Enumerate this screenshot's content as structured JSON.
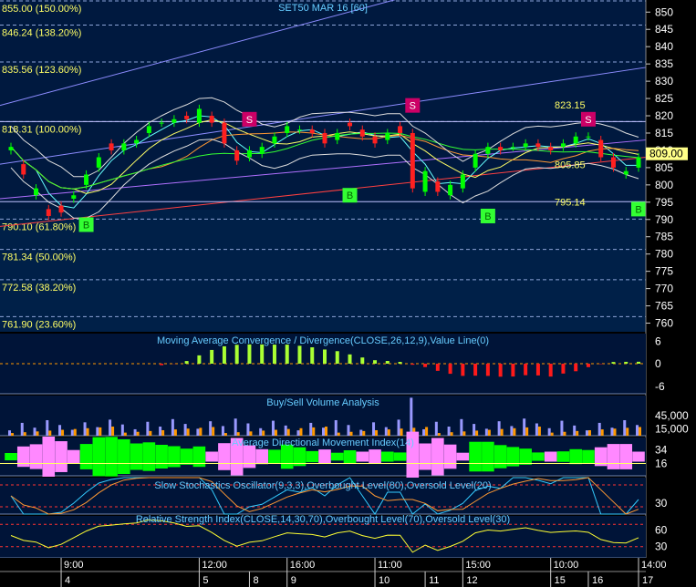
{
  "header": {
    "title": "SET50 MAR 16  [60]"
  },
  "price_panel": {
    "y_ticks": [
      850,
      845,
      840,
      835,
      830,
      825,
      820,
      815,
      810,
      805,
      800,
      795,
      790,
      785,
      780,
      775,
      770,
      765,
      760
    ],
    "ylim": [
      757.5,
      853.5
    ],
    "fib_levels": [
      {
        "value": 855.0,
        "label": "855.00 (150.00%)"
      },
      {
        "value": 846.24,
        "label": "846.24 (138.20%)"
      },
      {
        "value": 835.56,
        "label": "835.56 (123.60%)"
      },
      {
        "value": 818.31,
        "label": "818.31 (100.00%)"
      },
      {
        "value": 790.1,
        "label": "790.10 (61.80%)"
      },
      {
        "value": 781.34,
        "label": "781.34 (50.00%)"
      },
      {
        "value": 772.58,
        "label": "772.58 (38.20%)"
      },
      {
        "value": 761.9,
        "label": "761.90 (23.60%)"
      }
    ],
    "price_labels": [
      {
        "value": 823.15,
        "text": "823.15"
      },
      {
        "value": 805.85,
        "text": "805.85"
      },
      {
        "value": 795.14,
        "text": "795.14"
      }
    ],
    "last_price": "809.00",
    "signals": [
      {
        "type": "B",
        "bar": 6,
        "value": 788.5
      },
      {
        "type": "S",
        "bar": 19,
        "value": 819.0
      },
      {
        "type": "B",
        "bar": 27,
        "value": 797.0
      },
      {
        "type": "S",
        "bar": 32,
        "value": 823.0
      },
      {
        "type": "B",
        "bar": 38,
        "value": 791.0
      },
      {
        "type": "S",
        "bar": 46,
        "value": 819.0
      },
      {
        "type": "B",
        "bar": 50,
        "value": 793.0
      }
    ],
    "candles": [
      [
        810,
        811
      ],
      [
        806,
        803
      ],
      [
        797,
        799
      ],
      [
        793,
        791
      ],
      [
        794,
        792
      ],
      [
        796,
        797
      ],
      [
        800,
        803
      ],
      [
        805,
        808
      ],
      [
        812,
        810
      ],
      [
        810,
        812
      ],
      [
        812,
        813
      ],
      [
        815,
        817
      ],
      [
        818,
        818
      ],
      [
        818,
        819
      ],
      [
        820,
        819
      ],
      [
        818,
        822
      ],
      [
        820,
        818
      ],
      [
        818,
        812
      ],
      [
        810,
        807
      ],
      [
        808,
        810
      ],
      [
        809,
        811
      ],
      [
        812,
        814
      ],
      [
        815,
        817
      ],
      [
        816,
        816
      ],
      [
        816,
        815
      ],
      [
        815,
        812
      ],
      [
        813,
        815
      ],
      [
        818,
        817
      ],
      [
        816,
        814
      ],
      [
        814,
        812
      ],
      [
        813,
        815
      ],
      [
        817,
        815
      ],
      [
        815,
        799
      ],
      [
        798,
        804
      ],
      [
        801,
        798
      ],
      [
        797,
        800
      ],
      [
        799,
        803
      ],
      [
        805,
        809
      ],
      [
        809,
        811
      ],
      [
        811,
        810
      ],
      [
        811,
        811
      ],
      [
        811,
        812
      ],
      [
        812,
        811
      ],
      [
        811,
        810
      ],
      [
        811,
        812
      ],
      [
        812,
        814
      ],
      [
        814,
        814
      ],
      [
        813,
        808
      ],
      [
        808,
        805
      ],
      [
        803,
        804
      ],
      [
        805,
        808
      ]
    ]
  },
  "macd_panel": {
    "title": "Moving Average Convergence / Divergence(CLOSE,26,12,9),Value Line(0)",
    "y_ticks": [
      "6",
      "0",
      "-6"
    ],
    "ylim": [
      -8,
      8
    ]
  },
  "volume_panel": {
    "title": "Buy/Sell Volume Analysis",
    "y_ticks": [
      "45,000",
      "15,000"
    ]
  },
  "adx_panel": {
    "title": "Average Directional Movement Index(14)",
    "y_ticks": [
      "34",
      "16"
    ]
  },
  "stoch_panel": {
    "title": "Slow Stochastics Oscillator(9,3,3),Overbought Level(80),Oversold Level(20)",
    "y_ticks": [
      "30"
    ]
  },
  "rsi_panel": {
    "title": "Relative Strength Index(CLOSE,14,30,70),Overbought Level(70),Oversold Level(30)",
    "y_ticks": [
      "60",
      "30"
    ]
  },
  "time_axis": {
    "times": [
      {
        "bar": 4,
        "label": "9:00"
      },
      {
        "bar": 15,
        "label": "12:00"
      },
      {
        "bar": 22,
        "label": "16:00"
      },
      {
        "bar": 29,
        "label": "11:00"
      },
      {
        "bar": 36,
        "label": "15:00"
      },
      {
        "bar": 43,
        "label": "10:00"
      },
      {
        "bar": 50,
        "label": "14:00"
      }
    ],
    "dates": [
      {
        "bar": 4,
        "label": "4"
      },
      {
        "bar": 15,
        "label": "5"
      },
      {
        "bar": 19,
        "label": "8"
      },
      {
        "bar": 22,
        "label": "9"
      },
      {
        "bar": 29,
        "label": "10"
      },
      {
        "bar": 33,
        "label": "11"
      },
      {
        "bar": 36,
        "label": "12"
      },
      {
        "bar": 43,
        "label": "15"
      },
      {
        "bar": 46,
        "label": "16"
      },
      {
        "bar": 50,
        "label": "17"
      }
    ]
  },
  "chart_data": {
    "type": "candlestick",
    "title": "SET50 MAR 16  [60]",
    "ylim": [
      757.5,
      853.5
    ],
    "fib_levels": [
      855.0,
      846.24,
      835.56,
      818.31,
      790.1,
      781.34,
      772.58,
      761.9
    ],
    "last_price": 809.0
  },
  "colors": {
    "bg": "#000000",
    "price_bg": "#001d3f",
    "grid": "#6f86b0",
    "fib_label": "#ffff66",
    "axis_text": "#ffffff",
    "title_text": "#66ccff",
    "up": "#00ff00",
    "down": "#ff2020",
    "buy": "#33ff33",
    "sell": "#cc0066",
    "macd_pos": "#aaff33",
    "macd_neg": "#ff1a1a",
    "adx_pink": "#ff88ff",
    "adx_green": "#00ff00",
    "vol_buy": "#ff9900",
    "vol_sell": "#9999ff",
    "last_box": "#ffff88"
  }
}
